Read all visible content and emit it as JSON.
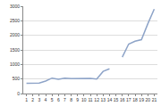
{
  "chart_data": {
    "type": "line",
    "categories": [
      "1",
      "2",
      "3",
      "4",
      "5",
      "6",
      "7",
      "8",
      "9",
      "10",
      "11",
      "12",
      "13",
      "14",
      "15",
      "16",
      "17",
      "18",
      "19",
      "20",
      "21"
    ],
    "values": [
      350,
      350,
      360,
      430,
      530,
      490,
      530,
      510,
      520,
      510,
      520,
      500,
      760,
      850,
      null,
      1250,
      1700,
      1800,
      1850,
      2400,
      2900
    ],
    "color": "#8ea4c8",
    "ylim": [
      0,
      3000
    ],
    "yticks": [
      0,
      500,
      1000,
      1500,
      2000,
      2500,
      3000
    ],
    "grid": true
  }
}
